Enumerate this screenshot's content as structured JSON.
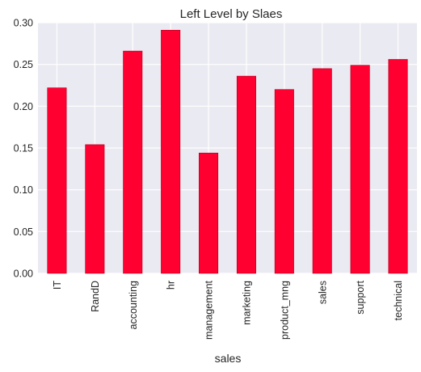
{
  "chart_data": {
    "type": "bar",
    "title": "Left Level by Slaes",
    "xlabel": "sales",
    "ylabel": "",
    "categories": [
      "IT",
      "RandD",
      "accounting",
      "hr",
      "management",
      "marketing",
      "product_mng",
      "sales",
      "support",
      "technical"
    ],
    "values": [
      0.222,
      0.154,
      0.266,
      0.291,
      0.144,
      0.236,
      0.22,
      0.245,
      0.249,
      0.256
    ],
    "ylim": [
      0,
      0.3
    ],
    "yticks": [
      "0.00",
      "0.05",
      "0.10",
      "0.15",
      "0.20",
      "0.25",
      "0.30"
    ],
    "grid": true,
    "colors": {
      "bar": "#ff0030",
      "bar_edge": "#b3001f",
      "plot_background": "#eaeaf2",
      "grid": "#ffffff"
    }
  }
}
